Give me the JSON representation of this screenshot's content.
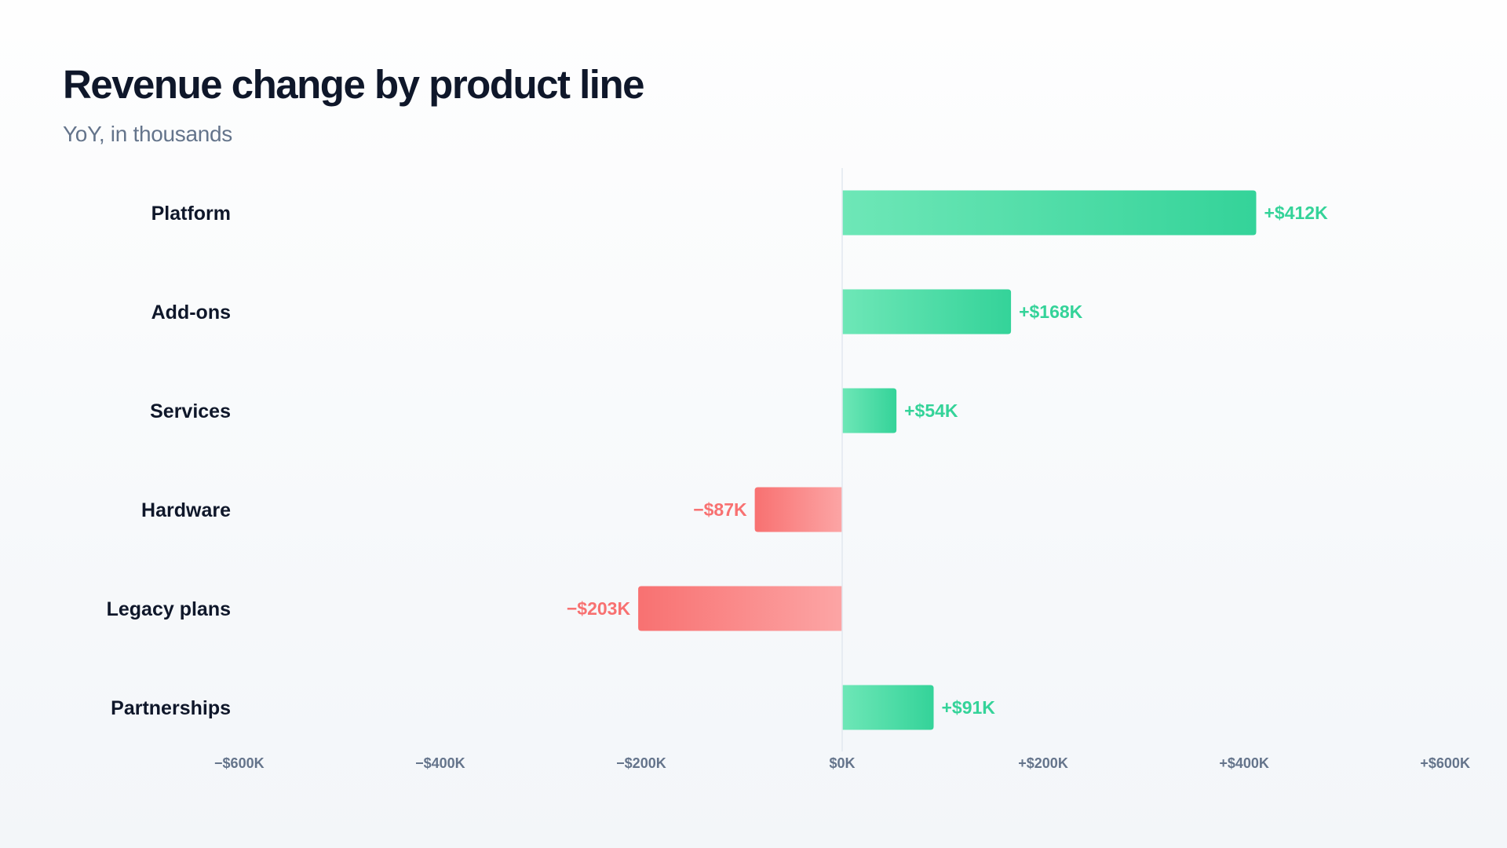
{
  "header": {
    "title": "Revenue change by product line",
    "subtitle": "YoY, in thousands"
  },
  "colors": {
    "positive": "#34d399",
    "positive_light": "#6ee7b7",
    "negative": "#f87171",
    "negative_light": "#fca5a5",
    "positive_text": "#34d399",
    "negative_text": "#f87171",
    "baseline": "#e2e8f0"
  },
  "chart_data": {
    "type": "bar",
    "orientation": "horizontal",
    "categories": [
      "Platform",
      "Add-ons",
      "Services",
      "Hardware",
      "Legacy plans",
      "Partnerships"
    ],
    "values": [
      412,
      168,
      54,
      -87,
      -203,
      91
    ],
    "value_labels": [
      "+$412K",
      "+$168K",
      "+$54K",
      "−$87K",
      "−$203K",
      "+$91K"
    ],
    "title": "Revenue change by product line",
    "subtitle": "YoY, in thousands",
    "xlim": [
      -600,
      600
    ],
    "x_ticks": [
      -600,
      -400,
      -200,
      0,
      200,
      400,
      600
    ],
    "x_tick_labels": [
      "−$600K",
      "−$400K",
      "−$200K",
      "$0K",
      "+$200K",
      "+$400K",
      "+$600K"
    ],
    "grid": false
  }
}
